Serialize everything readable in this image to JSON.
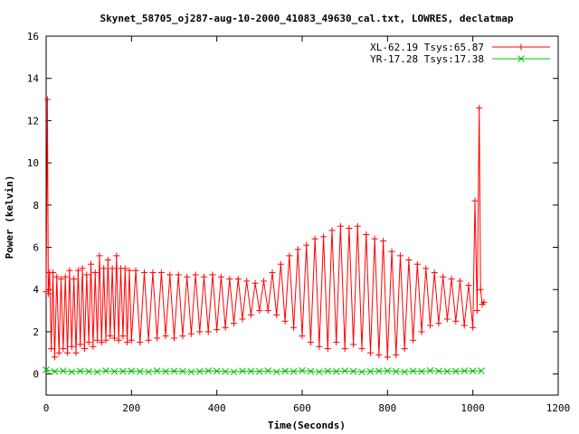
{
  "chart_data": {
    "type": "line",
    "title": "Skynet_58705_oj287-aug-10-2000_41083_49630_cal.txt, LOWRES, declatmap",
    "xlabel": "Time(Seconds)",
    "ylabel": "Power (kelvin)",
    "xlim": [
      0,
      1200
    ],
    "ylim": [
      -1,
      16
    ],
    "x_ticks": [
      "0",
      "200",
      "400",
      "600",
      "800",
      "1000",
      "1200"
    ],
    "y_ticks": [
      "0",
      "2",
      "4",
      "6",
      "8",
      "10",
      "12",
      "14",
      "16"
    ],
    "grid": false,
    "legend_position": "top-right",
    "series": [
      {
        "name": "XL-62.19 Tsys:65.87",
        "color": "#ff0000",
        "marker": "plus",
        "x": [
          0,
          3,
          5,
          8,
          12,
          16,
          20,
          25,
          30,
          35,
          40,
          45,
          50,
          55,
          60,
          65,
          70,
          75,
          80,
          85,
          90,
          95,
          100,
          105,
          110,
          115,
          120,
          125,
          130,
          135,
          140,
          145,
          150,
          155,
          160,
          165,
          170,
          175,
          180,
          185,
          190,
          195,
          200,
          210,
          220,
          230,
          240,
          250,
          260,
          270,
          280,
          290,
          300,
          310,
          320,
          330,
          340,
          350,
          360,
          370,
          380,
          390,
          400,
          410,
          420,
          430,
          440,
          450,
          460,
          470,
          480,
          490,
          500,
          510,
          520,
          530,
          540,
          550,
          560,
          570,
          580,
          590,
          600,
          610,
          620,
          630,
          640,
          650,
          660,
          670,
          680,
          690,
          700,
          710,
          720,
          730,
          740,
          750,
          760,
          770,
          780,
          790,
          800,
          810,
          820,
          830,
          840,
          850,
          860,
          870,
          880,
          890,
          900,
          910,
          920,
          930,
          940,
          950,
          960,
          970,
          980,
          990,
          1000,
          1005,
          1010,
          1015,
          1018,
          1022,
          1026
        ],
        "y": [
          3.9,
          13.0,
          3.8,
          4.8,
          1.2,
          4.8,
          0.8,
          4.6,
          1.0,
          4.5,
          1.2,
          4.6,
          1.0,
          4.9,
          1.3,
          4.5,
          1.0,
          4.9,
          1.4,
          5.0,
          1.2,
          4.7,
          1.5,
          5.2,
          1.3,
          4.8,
          1.6,
          5.6,
          1.5,
          5.0,
          1.6,
          5.4,
          1.8,
          5.0,
          1.7,
          5.6,
          1.6,
          5.0,
          1.8,
          5.0,
          1.5,
          4.9,
          1.6,
          4.9,
          1.5,
          4.8,
          1.6,
          4.8,
          1.7,
          4.8,
          1.8,
          4.7,
          1.7,
          4.7,
          1.8,
          4.6,
          1.9,
          4.7,
          2.0,
          4.6,
          2.0,
          4.7,
          2.1,
          4.6,
          2.2,
          4.5,
          2.4,
          4.5,
          2.6,
          4.4,
          2.8,
          4.3,
          3.0,
          4.4,
          3.0,
          4.8,
          2.8,
          5.2,
          2.5,
          5.6,
          2.2,
          5.9,
          1.8,
          6.1,
          1.5,
          6.4,
          1.3,
          6.5,
          1.2,
          6.8,
          1.5,
          7.0,
          1.2,
          6.9,
          1.4,
          7.0,
          1.2,
          6.6,
          1.0,
          6.4,
          0.9,
          6.3,
          0.8,
          5.8,
          0.9,
          5.6,
          1.2,
          5.4,
          1.6,
          5.2,
          2.0,
          5.0,
          2.3,
          4.8,
          2.4,
          4.6,
          2.6,
          4.5,
          2.5,
          4.4,
          2.3,
          4.2,
          2.2,
          8.2,
          3.0,
          12.6,
          4.0,
          3.3,
          3.4
        ]
      },
      {
        "name": "YR-17.28 Tsys:17.38",
        "color": "#00c000",
        "marker": "cross",
        "x": [
          0,
          20,
          40,
          60,
          80,
          100,
          120,
          140,
          160,
          180,
          200,
          220,
          240,
          260,
          280,
          300,
          320,
          340,
          360,
          380,
          400,
          420,
          440,
          460,
          480,
          500,
          520,
          540,
          560,
          580,
          600,
          620,
          640,
          660,
          680,
          700,
          720,
          740,
          760,
          780,
          800,
          820,
          840,
          860,
          880,
          900,
          920,
          940,
          960,
          980,
          1000,
          1020
        ],
        "y": [
          0.2,
          0.12,
          0.15,
          0.1,
          0.14,
          0.12,
          0.1,
          0.15,
          0.12,
          0.13,
          0.14,
          0.12,
          0.1,
          0.15,
          0.12,
          0.14,
          0.13,
          0.1,
          0.12,
          0.15,
          0.14,
          0.12,
          0.1,
          0.14,
          0.13,
          0.12,
          0.15,
          0.1,
          0.14,
          0.12,
          0.16,
          0.13,
          0.1,
          0.14,
          0.12,
          0.15,
          0.13,
          0.1,
          0.12,
          0.14,
          0.15,
          0.12,
          0.1,
          0.14,
          0.12,
          0.16,
          0.14,
          0.12,
          0.13,
          0.15,
          0.14,
          0.15
        ]
      }
    ]
  }
}
